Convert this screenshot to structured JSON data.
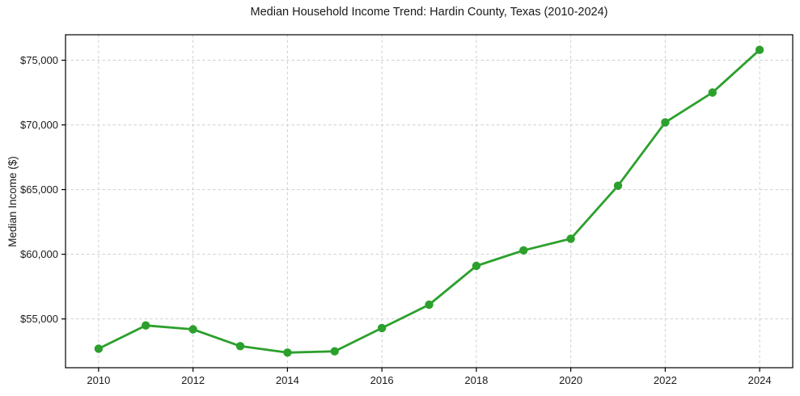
{
  "chart_data": {
    "type": "line",
    "title": "Median Household Income Trend: Hardin County, Texas (2010-2024)",
    "xlabel": "",
    "ylabel": "Median Income ($)",
    "series_name": "Median Household Income",
    "x": [
      2010,
      2011,
      2012,
      2013,
      2014,
      2015,
      2016,
      2017,
      2018,
      2019,
      2020,
      2021,
      2022,
      2023,
      2024
    ],
    "values": [
      52700,
      54500,
      54200,
      52900,
      52400,
      52500,
      54300,
      56100,
      59100,
      60300,
      61200,
      65300,
      70200,
      72500,
      75800
    ],
    "xlim": [
      2009.3,
      2024.7
    ],
    "ylim": [
      51230,
      76970
    ],
    "xticks": [
      2010,
      2012,
      2014,
      2016,
      2018,
      2020,
      2022,
      2024
    ],
    "xtick_labels": [
      "2010",
      "2012",
      "2014",
      "2016",
      "2018",
      "2020",
      "2022",
      "2024"
    ],
    "yticks": [
      55000,
      60000,
      65000,
      70000,
      75000
    ],
    "ytick_labels": [
      "$55,000",
      "$60,000",
      "$65,000",
      "$70,000",
      "$75,000"
    ],
    "grid": true,
    "grid_style": "dashed",
    "legend": false,
    "colors": {
      "line": "#2ca02c",
      "marker": "#2ca02c",
      "grid": "#cfcfcf",
      "spine": "#000000",
      "text": "#1a1a1a",
      "background": "#ffffff"
    },
    "marker": "o"
  }
}
